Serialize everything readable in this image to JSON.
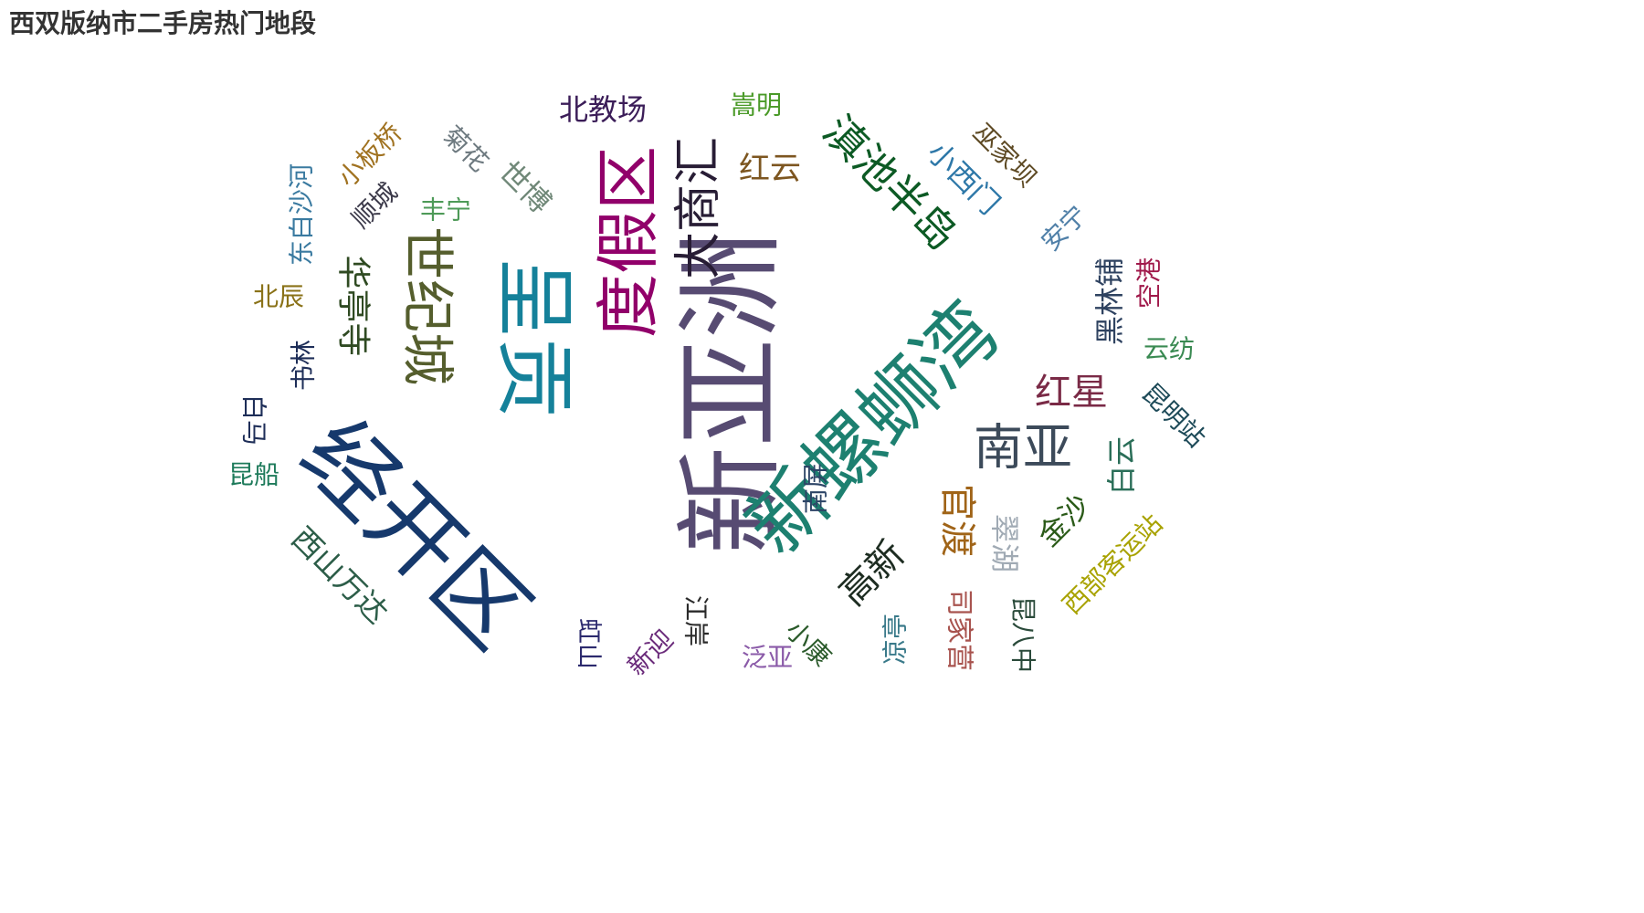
{
  "chart_data": {
    "type": "wordcloud",
    "title": "西双版纳市二手房热门地段",
    "words": [
      {
        "text": "新亚洲",
        "weight": 100,
        "color": "#574b72",
        "rotate": -90
      },
      {
        "text": "经开区",
        "weight": 95,
        "color": "#16396c",
        "rotate": 45
      },
      {
        "text": "新螺蛳湾",
        "weight": 90,
        "color": "#1d8070",
        "rotate": -45
      },
      {
        "text": "呈贡",
        "weight": 85,
        "color": "#15819a",
        "rotate": 90
      },
      {
        "text": "度假区",
        "weight": 72,
        "color": "#91006a",
        "rotate": -90
      },
      {
        "text": "世纪城",
        "weight": 62,
        "color": "#555e2d",
        "rotate": 90
      },
      {
        "text": "大商汇",
        "weight": 58,
        "color": "#281d35",
        "rotate": -90
      },
      {
        "text": "滇池半岛",
        "weight": 56,
        "color": "#0c5a24",
        "rotate": 45
      },
      {
        "text": "南亚",
        "weight": 50,
        "color": "#3c4a5a",
        "rotate": 0
      },
      {
        "text": "官渡",
        "weight": 40,
        "color": "#a06418",
        "rotate": 90
      },
      {
        "text": "红星",
        "weight": 38,
        "color": "#7a2a46",
        "rotate": 0
      },
      {
        "text": "高新",
        "weight": 36,
        "color": "#1d2c21",
        "rotate": -45
      },
      {
        "text": "华亭寺",
        "weight": 34,
        "color": "#2f4a22",
        "rotate": 90
      },
      {
        "text": "西山万达",
        "weight": 33,
        "color": "#2c5d48",
        "rotate": 45
      },
      {
        "text": "黑林铺",
        "weight": 32,
        "color": "#2e4260",
        "rotate": -90
      },
      {
        "text": "小西门",
        "weight": 32,
        "color": "#2e78a8",
        "rotate": 45
      },
      {
        "text": "红云",
        "weight": 32,
        "color": "#7d5620",
        "rotate": 0
      },
      {
        "text": "世博",
        "weight": 32,
        "color": "#708878",
        "rotate": 45
      },
      {
        "text": "北教场",
        "weight": 32,
        "color": "#3b1d58",
        "rotate": 0
      },
      {
        "text": "金沙",
        "weight": 31,
        "color": "#2a5a18",
        "rotate": -45
      },
      {
        "text": "翠湖",
        "weight": 31,
        "color": "#a0aab4",
        "rotate": 90
      },
      {
        "text": "白云",
        "weight": 31,
        "color": "#2a6e58",
        "rotate": -90
      },
      {
        "text": "西部客运站",
        "weight": 30,
        "color": "#a8a200",
        "rotate": -45
      },
      {
        "text": "司家营",
        "weight": 30,
        "color": "#a8534e",
        "rotate": 90
      },
      {
        "text": "小板桥",
        "weight": 28,
        "color": "#a07220",
        "rotate": -45
      },
      {
        "text": "东白沙河",
        "weight": 28,
        "color": "#3a7aa0",
        "rotate": -90
      },
      {
        "text": "菊花",
        "weight": 28,
        "color": "#6e7a80",
        "rotate": 45
      },
      {
        "text": "顺城",
        "weight": 28,
        "color": "#3c3a4a",
        "rotate": -45
      },
      {
        "text": "丰宁",
        "weight": 28,
        "color": "#4e9a58",
        "rotate": 0
      },
      {
        "text": "巫家坝",
        "weight": 28,
        "color": "#5e4a24",
        "rotate": 45
      },
      {
        "text": "安宁",
        "weight": 28,
        "color": "#5080a8",
        "rotate": -45
      },
      {
        "text": "空港",
        "weight": 28,
        "color": "#a0184a",
        "rotate": -90
      },
      {
        "text": "云纺",
        "weight": 28,
        "color": "#3a8a52",
        "rotate": 0
      },
      {
        "text": "昆明站",
        "weight": 28,
        "color": "#1d4a58",
        "rotate": 45
      },
      {
        "text": "嵩明",
        "weight": 28,
        "color": "#4a9a28",
        "rotate": 0
      },
      {
        "text": "北辰",
        "weight": 28,
        "color": "#8a7218",
        "rotate": 0
      },
      {
        "text": "书林",
        "weight": 28,
        "color": "#1e2e58",
        "rotate": -90
      },
      {
        "text": "白马",
        "weight": 28,
        "color": "#1e2e58",
        "rotate": 90
      },
      {
        "text": "昆船",
        "weight": 28,
        "color": "#1d7a5a",
        "rotate": 0
      },
      {
        "text": "虹山",
        "weight": 28,
        "color": "#2c2a6e",
        "rotate": 90
      },
      {
        "text": "新迎",
        "weight": 28,
        "color": "#6a2a7a",
        "rotate": -45
      },
      {
        "text": "江岸",
        "weight": 28,
        "color": "#2a2a2a",
        "rotate": 90
      },
      {
        "text": "泛亚",
        "weight": 28,
        "color": "#8a5aa8",
        "rotate": 0
      },
      {
        "text": "凉亭",
        "weight": 28,
        "color": "#3a7a8a",
        "rotate": -90
      },
      {
        "text": "小康",
        "weight": 28,
        "color": "#2a5a2a",
        "rotate": 45
      },
      {
        "text": "昆八中",
        "weight": 28,
        "color": "#2a4a3a",
        "rotate": 90
      },
      {
        "text": "南屏",
        "weight": 28,
        "color": "#2c4466",
        "rotate": -90
      }
    ]
  }
}
